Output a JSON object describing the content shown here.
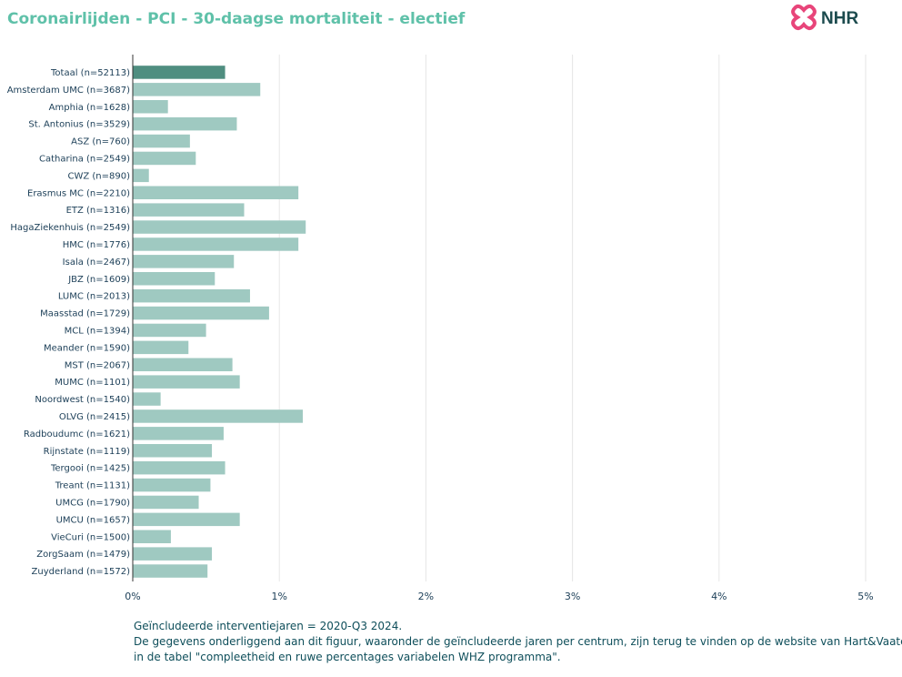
{
  "chart_data": {
    "type": "bar",
    "orientation": "horizontal",
    "title": "Coronairlijden - PCI - 30-daagse mortaliteit - electief",
    "xlabel": "",
    "ylabel": "",
    "xlim": [
      0,
      5
    ],
    "x_ticks": [
      0,
      1,
      2,
      3,
      4,
      5
    ],
    "x_tick_labels": [
      "0%",
      "1%",
      "2%",
      "3%",
      "4%",
      "5%"
    ],
    "grid": "vertical",
    "legend": "none",
    "categories": [
      "Totaal (n=52113)",
      "Amsterdam UMC (n=3687)",
      "Amphia (n=1628)",
      "St. Antonius (n=3529)",
      "ASZ (n=760)",
      "Catharina (n=2549)",
      "CWZ (n=890)",
      "Erasmus MC (n=2210)",
      "ETZ (n=1316)",
      "HagaZiekenhuis (n=2549)",
      "HMC (n=1776)",
      "Isala (n=2467)",
      "JBZ (n=1609)",
      "LUMC (n=2013)",
      "Maasstad (n=1729)",
      "MCL (n=1394)",
      "Meander (n=1590)",
      "MST (n=2067)",
      "MUMC (n=1101)",
      "Noordwest (n=1540)",
      "OLVG (n=2415)",
      "Radboudumc (n=1621)",
      "Rijnstate (n=1119)",
      "Tergooi (n=1425)",
      "Treant (n=1131)",
      "UMCG (n=1790)",
      "UMCU (n=1657)",
      "VieCuri (n=1500)",
      "ZorgSaam (n=1479)",
      "Zuyderland (n=1572)"
    ],
    "values": [
      0.63,
      0.87,
      0.24,
      0.71,
      0.39,
      0.43,
      0.11,
      1.13,
      0.76,
      1.18,
      1.13,
      0.69,
      0.56,
      0.8,
      0.93,
      0.5,
      0.38,
      0.68,
      0.73,
      0.19,
      1.16,
      0.62,
      0.54,
      0.63,
      0.53,
      0.45,
      0.73,
      0.26,
      0.54,
      0.51
    ],
    "colors": {
      "total": "#4f8e80",
      "default": "#9fc9c1"
    }
  },
  "footnote": {
    "line1": "Geïncludeerde interventiejaren = 2020-Q3 2024.",
    "line2": "De gegevens onderliggend aan dit figuur, waaronder de geïncludeerde jaren per centrum, zijn terug te vinden op de website van Hart&Vaatcijfers",
    "line3": "in de tabel \"compleetheid en ruwe percentages variabelen WHZ programma\"."
  },
  "logo": {
    "text": "NHR",
    "icon": "nhr-cross-logo-icon",
    "color": "#e8457a",
    "text_color": "#1c4b4e"
  }
}
